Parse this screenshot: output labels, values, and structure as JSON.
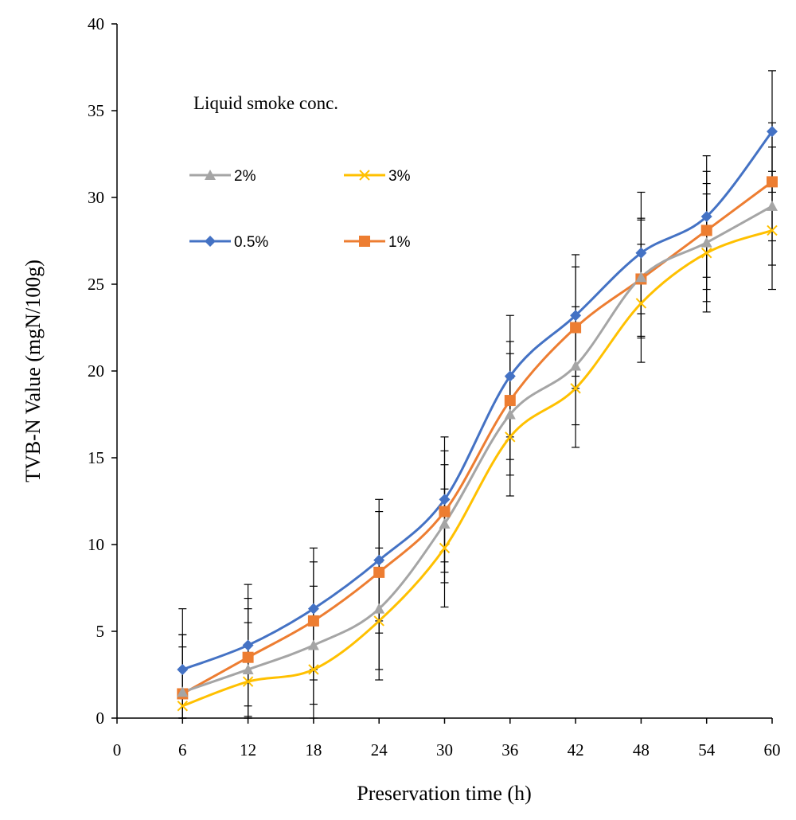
{
  "chart_data": {
    "type": "line",
    "xlabel": "Preservation time (h)",
    "ylabel": "TVB-N Value (mgN/100g)",
    "xlim": [
      0,
      60
    ],
    "ylim": [
      0,
      40
    ],
    "xticks": [
      "0",
      "6",
      "12",
      "18",
      "24",
      "30",
      "36",
      "42",
      "48",
      "54",
      "60"
    ],
    "yticks": [
      "0",
      "5",
      "10",
      "15",
      "20",
      "25",
      "30",
      "35",
      "40"
    ],
    "grid": false,
    "smooth": true,
    "legend_title": "Liquid smoke  conc.",
    "legend_position": "top-left",
    "x": [
      6,
      12,
      18,
      24,
      30,
      36,
      42,
      48,
      54,
      60
    ],
    "series": [
      {
        "name": "0.5%",
        "color": "#4472C4",
        "marker": "diamond",
        "values": [
          2.8,
          4.2,
          6.3,
          9.1,
          12.6,
          19.7,
          23.2,
          26.8,
          28.9,
          33.8
        ],
        "errors": [
          3.5,
          3.5,
          3.5,
          3.5,
          3.6,
          3.5,
          3.5,
          3.5,
          3.5,
          3.5
        ]
      },
      {
        "name": "1%",
        "color": "#ED7D31",
        "marker": "square",
        "values": [
          1.4,
          3.5,
          5.6,
          8.4,
          11.9,
          18.3,
          22.5,
          25.3,
          28.1,
          30.9
        ],
        "errors": [
          3.4,
          3.4,
          3.4,
          3.5,
          3.5,
          3.4,
          3.5,
          3.4,
          3.4,
          3.4
        ]
      },
      {
        "name": "2%",
        "color": "#A5A5A5",
        "marker": "triangle",
        "values": [
          1.5,
          2.8,
          4.2,
          6.3,
          11.2,
          17.5,
          20.3,
          25.4,
          27.4,
          29.5
        ],
        "errors": [
          3.3,
          3.5,
          3.4,
          3.5,
          3.4,
          3.5,
          3.4,
          3.4,
          3.4,
          3.4
        ]
      },
      {
        "name": "3%",
        "color": "#FFC000",
        "marker": "x",
        "values": [
          0.7,
          2.1,
          2.8,
          5.6,
          9.8,
          16.2,
          19.0,
          23.9,
          26.8,
          28.1
        ],
        "errors": [
          3.4,
          3.4,
          3.5,
          3.4,
          3.4,
          3.4,
          3.4,
          3.4,
          3.4,
          3.4
        ]
      }
    ],
    "legend_order": [
      "2%",
      "3%",
      "0.5%",
      "1%"
    ]
  }
}
